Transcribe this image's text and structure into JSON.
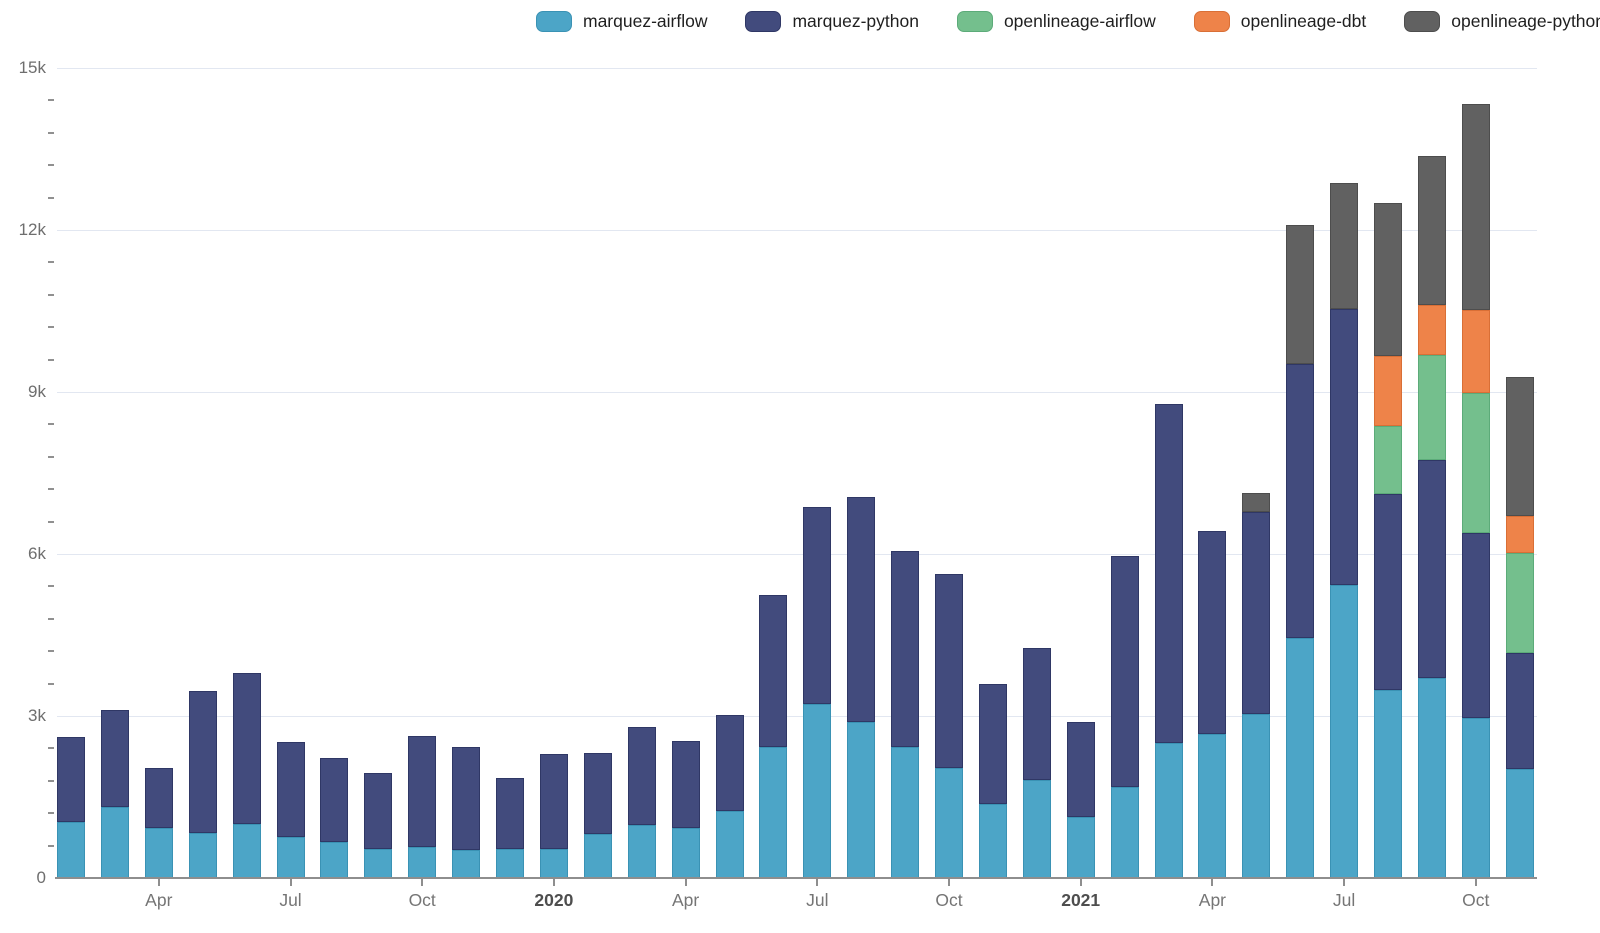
{
  "chart_data": {
    "type": "bar",
    "stacked": true,
    "title": "",
    "xlabel": "",
    "ylabel": "",
    "grid": true,
    "legend_position": "top-center",
    "background": "#ffffff",
    "grid_color": "#e2e7f1",
    "axis_color": "#8e8e8e",
    "tick_label_color": "#757575",
    "year_label_color": "#4e4e4e",
    "ylim": [
      0,
      15000
    ],
    "ytick_values": [
      0,
      3000,
      6000,
      9000,
      12000,
      15000
    ],
    "ytick_labels": [
      "0",
      "3k",
      "6k",
      "9k",
      "12k",
      "15k"
    ],
    "minor_tick_step": 600,
    "x": [
      "Feb 2019",
      "Mar 2019",
      "Apr 2019",
      "May 2019",
      "Jun 2019",
      "Jul 2019",
      "Aug 2019",
      "Sep 2019",
      "Oct 2019",
      "Nov 2019",
      "Dec 2019",
      "Jan 2020",
      "Feb 2020",
      "Mar 2020",
      "Apr 2020",
      "May 2020",
      "Jun 2020",
      "Jul 2020",
      "Aug 2020",
      "Sep 2020",
      "Oct 2020",
      "Nov 2020",
      "Dec 2020",
      "Jan 2021",
      "Feb 2021",
      "Mar 2021",
      "Apr 2021",
      "May 2021",
      "Jun 2021",
      "Jul 2021",
      "Aug 2021",
      "Sep 2021",
      "Oct 2021",
      "Nov 2021"
    ],
    "xticks": [
      {
        "index": 2,
        "label": "Apr",
        "bold": false
      },
      {
        "index": 5,
        "label": "Jul",
        "bold": false
      },
      {
        "index": 8,
        "label": "Oct",
        "bold": false
      },
      {
        "index": 11,
        "label": "2020",
        "bold": true
      },
      {
        "index": 14,
        "label": "Apr",
        "bold": false
      },
      {
        "index": 17,
        "label": "Jul",
        "bold": false
      },
      {
        "index": 20,
        "label": "Oct",
        "bold": false
      },
      {
        "index": 23,
        "label": "2021",
        "bold": true
      },
      {
        "index": 26,
        "label": "Apr",
        "bold": false
      },
      {
        "index": 29,
        "label": "Jul",
        "bold": false
      },
      {
        "index": 32,
        "label": "Oct",
        "bold": false
      }
    ],
    "series": [
      {
        "name": "marquez-airflow",
        "color": "#4CA5C7",
        "border_color": "#3A92B4",
        "values": [
          1040,
          1320,
          930,
          830,
          995,
          755,
          670,
          530,
          580,
          520,
          535,
          530,
          810,
          990,
          920,
          1240,
          2420,
          3215,
          2895,
          2420,
          2030,
          1365,
          1810,
          1125,
          1690,
          2495,
          2660,
          3030,
          4440,
          5425,
          3480,
          3710,
          2955,
          2013
        ]
      },
      {
        "name": "marquez-python",
        "color": "#424B7D",
        "border_color": "#2F3765",
        "values": [
          1575,
          1790,
          1115,
          2640,
          2795,
          1760,
          1545,
          1420,
          2050,
          1900,
          1310,
          1765,
          1500,
          1800,
          1625,
          1785,
          2820,
          3650,
          4165,
          3635,
          3595,
          2220,
          2455,
          1755,
          4280,
          6275,
          3770,
          3755,
          5080,
          5115,
          3625,
          4030,
          3440,
          2160
        ]
      },
      {
        "name": "openlineage-airflow",
        "color": "#74BF8D",
        "border_color": "#5CAB79",
        "values": [
          0,
          0,
          0,
          0,
          0,
          0,
          0,
          0,
          0,
          0,
          0,
          0,
          0,
          0,
          0,
          0,
          0,
          0,
          0,
          0,
          0,
          0,
          0,
          0,
          0,
          0,
          0,
          0,
          0,
          0,
          1265,
          1945,
          2595,
          1850
        ]
      },
      {
        "name": "openlineage-dbt",
        "color": "#EE8349",
        "border_color": "#D96F36",
        "values": [
          0,
          0,
          0,
          0,
          0,
          0,
          0,
          0,
          0,
          0,
          0,
          0,
          0,
          0,
          0,
          0,
          0,
          0,
          0,
          0,
          0,
          0,
          0,
          0,
          0,
          0,
          0,
          0,
          0,
          0,
          1300,
          930,
          1520,
          680
        ]
      },
      {
        "name": "openlineage-python",
        "color": "#616161",
        "border_color": "#4d4d4d",
        "values": [
          0,
          0,
          0,
          0,
          0,
          0,
          0,
          0,
          0,
          0,
          0,
          0,
          0,
          0,
          0,
          0,
          0,
          0,
          0,
          0,
          0,
          0,
          0,
          0,
          0,
          0,
          0,
          350,
          2575,
          2325,
          2825,
          2755,
          3820,
          2580
        ]
      }
    ]
  }
}
